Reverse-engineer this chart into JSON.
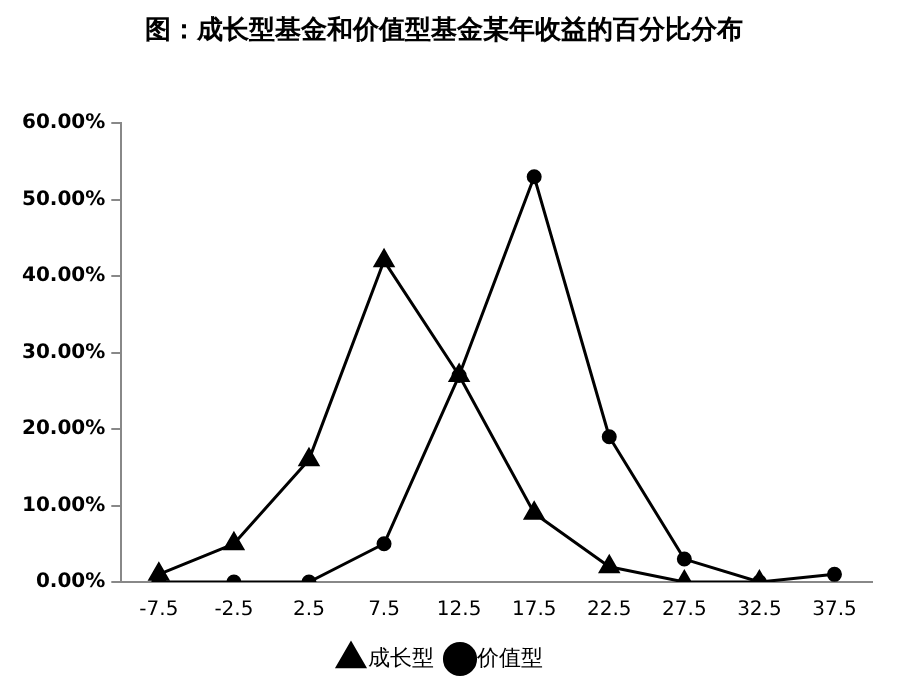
{
  "chart_data": {
    "type": "line",
    "title": "图：成长型基金和价值型基金某年收益的百分比分布",
    "categories": [
      "-7.5",
      "-2.5",
      "2.5",
      "7.5",
      "12.5",
      "17.5",
      "22.5",
      "27.5",
      "32.5",
      "37.5"
    ],
    "series": [
      {
        "name": "成长型",
        "color": "#000000",
        "marker": "triangle",
        "values": [
          1,
          5,
          16,
          42,
          27,
          9,
          2,
          0,
          0,
          null
        ]
      },
      {
        "name": "价值型",
        "color": "#000000",
        "marker": "circle",
        "values": [
          0,
          0,
          0,
          5,
          27,
          53,
          19,
          3,
          0,
          1
        ]
      }
    ],
    "ylim": [
      0,
      60
    ],
    "yticks": [
      {
        "value": 0,
        "label": "0.00%"
      },
      {
        "value": 10,
        "label": "10.00%"
      },
      {
        "value": 20,
        "label": "20.00%"
      },
      {
        "value": 30,
        "label": "30.00%"
      },
      {
        "value": 40,
        "label": "40.00%"
      },
      {
        "value": 50,
        "label": "50.00%"
      },
      {
        "value": 60,
        "label": "60.00%"
      }
    ],
    "grid": false,
    "legend": "bottom",
    "line_style": "solid"
  }
}
